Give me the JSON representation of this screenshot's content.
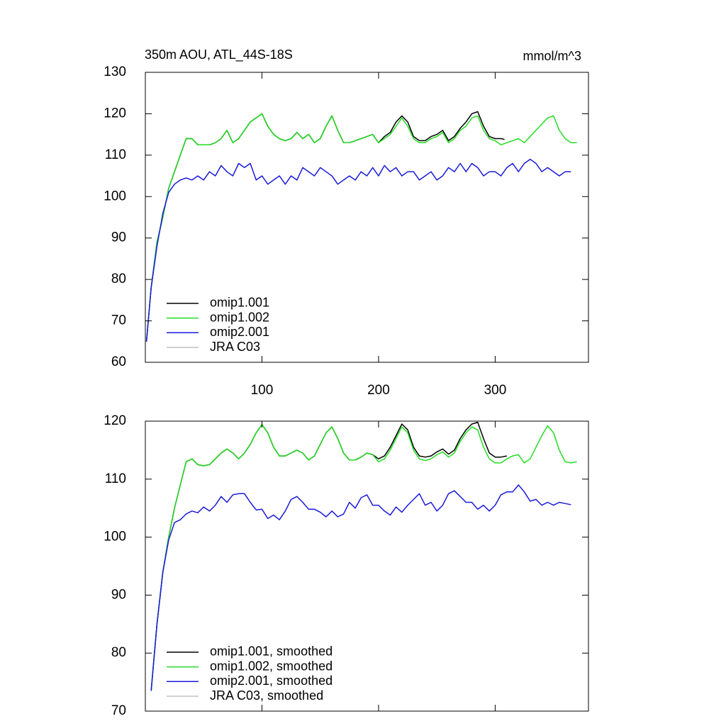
{
  "chart_data": [
    {
      "type": "line",
      "title": "350m AOU, ATL_44S-18S",
      "units": "mmol/m^3",
      "xlim": [
        0,
        380
      ],
      "xticks": [
        100,
        200,
        300
      ],
      "xticklabels": true,
      "ylim": [
        60,
        130
      ],
      "yticks": [
        60,
        70,
        80,
        90,
        100,
        110,
        120,
        130
      ],
      "legend": "lower left",
      "series": [
        {
          "name": "omip1.001",
          "color": "#000000",
          "x": [
            1,
            5,
            10,
            15,
            20,
            25,
            30,
            35,
            40,
            45,
            50,
            55,
            60,
            65,
            70,
            75,
            80,
            85,
            90,
            95,
            100,
            105,
            110,
            115,
            120,
            125,
            130,
            135,
            140,
            145,
            150,
            155,
            160,
            165,
            170,
            175,
            180,
            185,
            190,
            195,
            200,
            205,
            210,
            215,
            220,
            225,
            230,
            235,
            240,
            245,
            250,
            255,
            260,
            265,
            270,
            275,
            280,
            285,
            290,
            295,
            300,
            305,
            308
          ],
          "values": [
            65,
            78,
            89,
            95,
            102,
            106,
            110,
            114,
            114,
            112.5,
            112.5,
            112.5,
            113,
            114,
            116,
            113,
            114,
            116,
            118,
            119,
            120,
            117,
            115,
            114,
            113.5,
            114,
            115.5,
            114,
            115,
            113,
            114,
            117,
            119.5,
            116,
            113,
            113,
            113.5,
            114,
            114.5,
            115,
            113,
            114.5,
            115.5,
            118,
            119.5,
            118,
            114.5,
            113.5,
            113.5,
            114.5,
            115,
            116,
            113.5,
            114.5,
            116.5,
            118,
            120,
            120.5,
            117,
            114.5,
            114,
            114,
            113.8
          ]
        },
        {
          "name": "omip1.002",
          "color": "#22dd22",
          "x": [
            1,
            5,
            10,
            15,
            20,
            25,
            30,
            35,
            40,
            45,
            50,
            55,
            60,
            65,
            70,
            75,
            80,
            85,
            90,
            95,
            100,
            105,
            110,
            115,
            120,
            125,
            130,
            135,
            140,
            145,
            150,
            155,
            160,
            165,
            170,
            175,
            180,
            185,
            190,
            195,
            200,
            205,
            210,
            215,
            220,
            225,
            230,
            235,
            240,
            245,
            250,
            255,
            260,
            265,
            270,
            275,
            280,
            285,
            290,
            295,
            300,
            305,
            310,
            315,
            320,
            325,
            330,
            335,
            340,
            345,
            350,
            355,
            360,
            365,
            370
          ],
          "values": [
            65,
            78,
            89,
            95,
            102,
            106,
            110,
            114,
            114,
            112.5,
            112.5,
            112.5,
            113,
            114,
            116,
            113,
            114,
            116,
            118,
            119,
            120,
            117,
            115,
            114,
            113.5,
            114,
            115.5,
            114,
            115,
            113,
            114,
            117,
            119.5,
            116,
            113,
            113,
            113.5,
            114,
            114.5,
            115,
            113,
            114,
            115,
            117,
            119,
            117,
            114,
            113,
            113,
            114,
            114.5,
            115.5,
            113,
            114,
            116,
            117,
            119,
            119.5,
            116,
            114,
            113.5,
            112.5,
            113,
            113.5,
            114,
            113,
            114.5,
            116,
            117.5,
            119,
            119.5,
            116,
            114,
            113,
            113
          ]
        },
        {
          "name": "omip2.001",
          "color": "#1a1adc",
          "x": [
            1,
            5,
            10,
            15,
            20,
            25,
            30,
            35,
            40,
            45,
            50,
            55,
            60,
            65,
            70,
            75,
            80,
            85,
            90,
            95,
            100,
            105,
            110,
            115,
            120,
            125,
            130,
            135,
            140,
            145,
            150,
            155,
            160,
            165,
            170,
            175,
            180,
            185,
            190,
            195,
            200,
            205,
            210,
            215,
            220,
            225,
            230,
            235,
            240,
            245,
            250,
            255,
            260,
            265,
            270,
            275,
            280,
            285,
            290,
            295,
            300,
            305,
            310,
            315,
            320,
            325,
            330,
            335,
            340,
            345,
            350,
            355,
            360,
            365
          ],
          "values": [
            65,
            78,
            88,
            96,
            101,
            103,
            104,
            104.5,
            104,
            105,
            104,
            106,
            105,
            107.5,
            106,
            105,
            108,
            107,
            108,
            104,
            105,
            103,
            104,
            105,
            103,
            105,
            104,
            107,
            106,
            105,
            107,
            106,
            105,
            103,
            104,
            105,
            104,
            106,
            105,
            107,
            105,
            107.5,
            106,
            107,
            105,
            106,
            106,
            104,
            105,
            106,
            104,
            105,
            107,
            106,
            108,
            106,
            108,
            107,
            105,
            106,
            106,
            105,
            107,
            108,
            106,
            108,
            109,
            108,
            106,
            107,
            106,
            105,
            106,
            106
          ]
        },
        {
          "name": "JRA C03",
          "color": "#c0c0c0",
          "x": [],
          "values": []
        }
      ]
    },
    {
      "type": "line",
      "xlim": [
        0,
        380
      ],
      "xticks": [
        100,
        200,
        300
      ],
      "xticklabels": false,
      "ylim": [
        70,
        120
      ],
      "yticks": [
        70,
        80,
        90,
        100,
        110,
        120
      ],
      "legend": "lower left",
      "series": [
        {
          "name": "omip1.001, smoothed",
          "color": "#000000",
          "x": [
            5,
            10,
            15,
            20,
            25,
            30,
            35,
            40,
            45,
            50,
            55,
            60,
            65,
            70,
            75,
            80,
            85,
            90,
            95,
            100,
            105,
            110,
            115,
            120,
            125,
            130,
            135,
            140,
            145,
            150,
            155,
            160,
            165,
            170,
            175,
            180,
            185,
            190,
            195,
            200,
            205,
            210,
            215,
            220,
            225,
            230,
            235,
            240,
            245,
            250,
            255,
            260,
            265,
            270,
            275,
            280,
            285,
            290,
            295,
            300,
            305,
            310
          ],
          "values": [
            73.5,
            85,
            94,
            100,
            105,
            109,
            113,
            113.5,
            112.5,
            112.3,
            112.5,
            113.5,
            114.5,
            115.2,
            114.5,
            113.5,
            114.5,
            116,
            118,
            119.4,
            118,
            115.5,
            114,
            114,
            114.5,
            115,
            114.5,
            113.3,
            114,
            116,
            118,
            119,
            117,
            114.5,
            113.3,
            113.3,
            113.8,
            114.5,
            114.2,
            113.5,
            114,
            115.5,
            117.5,
            119.5,
            118.5,
            115.5,
            114,
            113.8,
            114,
            114.7,
            115.2,
            114.3,
            115,
            117,
            118.5,
            119.5,
            119.8,
            117,
            114.5,
            113.8,
            113.8,
            114
          ]
        },
        {
          "name": "omip1.002, smoothed",
          "color": "#22dd22",
          "x": [
            5,
            10,
            15,
            20,
            25,
            30,
            35,
            40,
            45,
            50,
            55,
            60,
            65,
            70,
            75,
            80,
            85,
            90,
            95,
            100,
            105,
            110,
            115,
            120,
            125,
            130,
            135,
            140,
            145,
            150,
            155,
            160,
            165,
            170,
            175,
            180,
            185,
            190,
            195,
            200,
            205,
            210,
            215,
            220,
            225,
            230,
            235,
            240,
            245,
            250,
            255,
            260,
            265,
            270,
            275,
            280,
            285,
            290,
            295,
            300,
            305,
            310,
            315,
            320,
            325,
            330,
            335,
            340,
            345,
            350,
            355,
            360,
            365,
            370
          ],
          "values": [
            73.5,
            85,
            94,
            100,
            105,
            109,
            113,
            113.5,
            112.5,
            112.3,
            112.5,
            113.5,
            114.5,
            115.2,
            114.5,
            113.5,
            114.5,
            116,
            118,
            119.4,
            118,
            115.5,
            114,
            114,
            114.5,
            115,
            114.5,
            113.3,
            114,
            116,
            118,
            119,
            117,
            114.5,
            113.3,
            113.3,
            113.8,
            114.5,
            114.2,
            113,
            113.5,
            115,
            117,
            119,
            118,
            115,
            113.5,
            113.2,
            113.5,
            114.2,
            114.7,
            113.8,
            114.5,
            116.5,
            118,
            119,
            118.5,
            115.5,
            113.5,
            112.8,
            112.8,
            113.5,
            114,
            114.2,
            112.8,
            113.5,
            115.5,
            117.5,
            119.2,
            118,
            115,
            113,
            112.8,
            113
          ]
        },
        {
          "name": "omip2.001, smoothed",
          "color": "#1a1adc",
          "x": [
            5,
            10,
            15,
            20,
            25,
            30,
            35,
            40,
            45,
            50,
            55,
            60,
            65,
            70,
            75,
            80,
            85,
            90,
            95,
            100,
            105,
            110,
            115,
            120,
            125,
            130,
            135,
            140,
            145,
            150,
            155,
            160,
            165,
            170,
            175,
            180,
            185,
            190,
            195,
            200,
            205,
            210,
            215,
            220,
            225,
            230,
            235,
            240,
            245,
            250,
            255,
            260,
            265,
            270,
            275,
            280,
            285,
            290,
            295,
            300,
            305,
            310,
            315,
            320,
            325,
            330,
            335,
            340,
            345,
            350,
            355,
            360,
            365
          ],
          "values": [
            73.5,
            85,
            94,
            99.5,
            102.5,
            103,
            104,
            104.5,
            104.2,
            105.2,
            104.5,
            105.5,
            107,
            106,
            107.3,
            107.5,
            107.5,
            106,
            104.7,
            104.8,
            103.2,
            103.8,
            103,
            104.5,
            106.5,
            107,
            106,
            104.8,
            104.8,
            104.3,
            103.5,
            104.5,
            103.5,
            104,
            106,
            105,
            106.8,
            107.3,
            105.5,
            105.5,
            104.5,
            103.8,
            105.2,
            104.3,
            105.5,
            106.5,
            107.5,
            105.5,
            106,
            104.5,
            105.5,
            107.5,
            108,
            107,
            106,
            106,
            104.8,
            105.5,
            104.5,
            105.5,
            107.3,
            107.8,
            107.8,
            109,
            107.8,
            106.2,
            106.5,
            105.5,
            106,
            105.5,
            106,
            105.8,
            105.6
          ]
        },
        {
          "name": "JRA C03, smoothed",
          "color": "#c0c0c0",
          "x": [],
          "values": []
        }
      ]
    }
  ]
}
